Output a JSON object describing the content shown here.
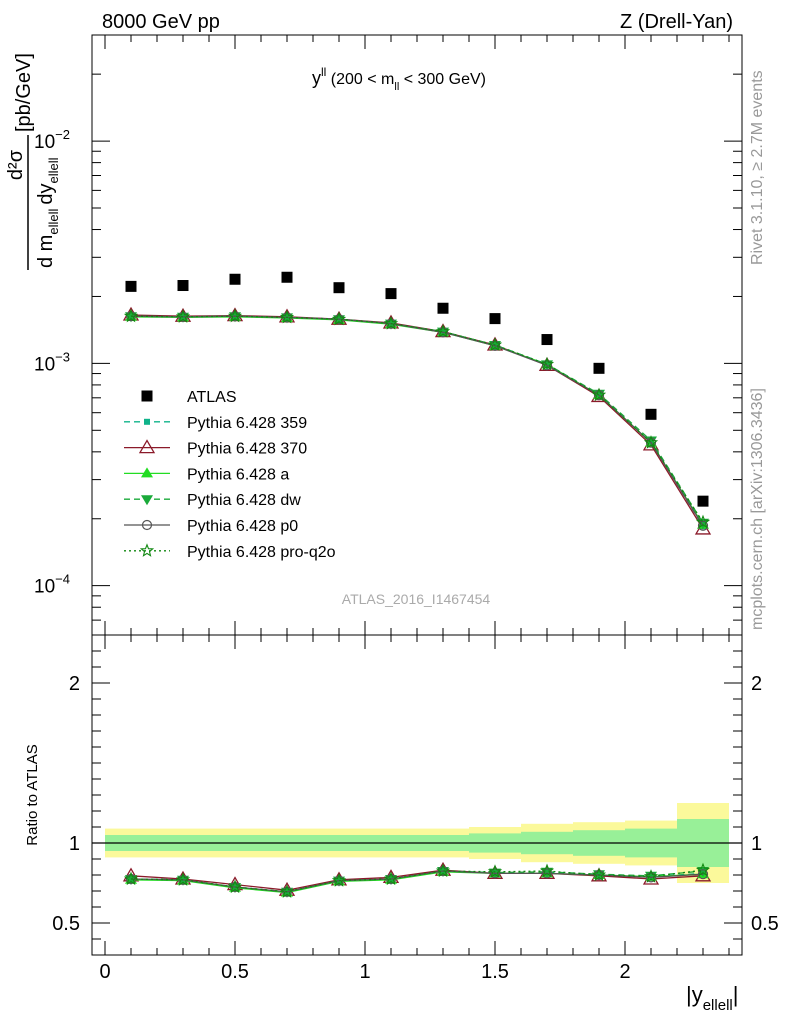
{
  "header": {
    "left": "8000 GeV pp",
    "right": "Z (Drell-Yan)"
  },
  "side_text": {
    "rivet": "Rivet 3.1.10, ≥ 2.7M events",
    "source": "mcplots.cern.ch [arXiv:1306.3436]"
  },
  "analysis_id": "ATLAS_2016_I1467454",
  "plot_title": {
    "var": "y",
    "var_sup": "ll",
    "range_pre": " (200 < m",
    "range_sub": "ll",
    "range_post": " < 300 GeV)"
  },
  "axes": {
    "ylabel_top": "[pb/GeV]",
    "ylabel_num": "d²σ",
    "ylabel_den_a": "d m",
    "ylabel_den_a_sub": "ellell",
    "ylabel_den_b": "dy",
    "ylabel_den_b_sub": "ellell",
    "ylabel_ratio": "Ratio to ATLAS",
    "xlabel": "|y",
    "xlabel_sub": "ellell",
    "xlabel_close": "|",
    "main_tick_labels": [
      {
        "base": "10",
        "exp": "−2",
        "value": 0.01
      },
      {
        "base": "10",
        "exp": "−3",
        "value": 0.001
      },
      {
        "base": "10",
        "exp": "−4",
        "value": 0.0001
      }
    ],
    "ratio_tick_labels": [
      "2",
      "1",
      "0.5"
    ],
    "x_tick_labels": [
      "0",
      "0.5",
      "1",
      "1.5",
      "2"
    ]
  },
  "legend": {
    "placement": "middle-left",
    "entries": [
      {
        "label": "ATLAS",
        "color": "#000000",
        "marker": "square",
        "dash": "none"
      },
      {
        "label": "Pythia 6.428 359",
        "color": "#0fb38a",
        "marker": "small-square",
        "dash": "dashed"
      },
      {
        "label": "Pythia 6.428 370",
        "color": "#8b1a2a",
        "marker": "open-triangle",
        "dash": "solid"
      },
      {
        "label": "Pythia 6.428 a",
        "color": "#22dd22",
        "marker": "triangle",
        "dash": "solid"
      },
      {
        "label": "Pythia 6.428 dw",
        "color": "#1aaa3a",
        "marker": "down-triangle",
        "dash": "dashed"
      },
      {
        "label": "Pythia 6.428 p0",
        "color": "#555555",
        "marker": "open-circle",
        "dash": "solid"
      },
      {
        "label": "Pythia 6.428 pro-q2o",
        "color": "#118811",
        "marker": "open-star",
        "dash": "dotted"
      }
    ]
  },
  "chart_data": {
    "type": "line",
    "title": "",
    "xlabel": "|y_ellell|",
    "ylabel": "d²σ / d m_ellell dy_ellell [pb/GeV]",
    "xlim": [
      -0.05,
      2.45
    ],
    "ylim_main": [
      6e-05,
      0.03
    ],
    "yscale_main": "log",
    "ylim_ratio": [
      0.3,
      2.3
    ],
    "grid": false,
    "x": [
      0.1,
      0.3,
      0.5,
      0.7,
      0.9,
      1.1,
      1.3,
      1.5,
      1.7,
      1.9,
      2.1,
      2.3
    ],
    "data": {
      "name": "ATLAS",
      "values": [
        0.00222,
        0.00224,
        0.00239,
        0.00244,
        0.00219,
        0.00206,
        0.00177,
        0.00159,
        0.00128,
        0.00095,
        0.00059,
        0.00024
      ],
      "bin_edges": [
        0.0,
        0.2,
        0.4,
        0.6,
        0.8,
        1.0,
        1.2,
        1.4,
        1.6,
        1.8,
        2.0,
        2.2,
        2.4
      ],
      "ratio_band_inner": [
        0.05,
        0.05,
        0.05,
        0.05,
        0.05,
        0.05,
        0.05,
        0.06,
        0.07,
        0.08,
        0.09,
        0.15
      ],
      "ratio_band_outer": [
        0.09,
        0.09,
        0.09,
        0.09,
        0.09,
        0.09,
        0.09,
        0.1,
        0.12,
        0.13,
        0.14,
        0.25
      ]
    },
    "series": [
      {
        "name": "Pythia 6.428 359",
        "values": [
          0.00163,
          0.00162,
          0.00163,
          0.00161,
          0.00158,
          0.00151,
          0.00138,
          0.00121,
          0.00099,
          0.00072,
          0.00044,
          0.000185
        ],
        "ratio": [
          0.775,
          0.77,
          0.725,
          0.695,
          0.765,
          0.775,
          0.825,
          0.815,
          0.815,
          0.8,
          0.79,
          0.81
        ]
      },
      {
        "name": "Pythia 6.428 370",
        "values": [
          0.00165,
          0.00163,
          0.00164,
          0.00162,
          0.00158,
          0.00152,
          0.00139,
          0.00121,
          0.00098,
          0.00071,
          0.00043,
          0.00018
        ],
        "ratio": [
          0.795,
          0.775,
          0.74,
          0.705,
          0.77,
          0.785,
          0.83,
          0.81,
          0.81,
          0.795,
          0.775,
          0.795
        ]
      },
      {
        "name": "Pythia 6.428 a",
        "values": [
          0.00162,
          0.00161,
          0.00162,
          0.0016,
          0.00157,
          0.0015,
          0.00138,
          0.0012,
          0.00099,
          0.00072,
          0.00044,
          0.000188
        ],
        "ratio": [
          0.77,
          0.765,
          0.72,
          0.69,
          0.76,
          0.77,
          0.82,
          0.81,
          0.81,
          0.8,
          0.79,
          0.805
        ]
      },
      {
        "name": "Pythia 6.428 dw",
        "values": [
          0.00163,
          0.00162,
          0.00163,
          0.00161,
          0.00158,
          0.00151,
          0.00139,
          0.00121,
          0.00099,
          0.00073,
          0.00045,
          0.000192
        ],
        "ratio": [
          0.775,
          0.77,
          0.725,
          0.695,
          0.765,
          0.775,
          0.825,
          0.815,
          0.82,
          0.805,
          0.795,
          0.825
        ]
      },
      {
        "name": "Pythia 6.428 p0",
        "values": [
          0.00163,
          0.00162,
          0.00163,
          0.00161,
          0.00158,
          0.00151,
          0.00138,
          0.0012,
          0.00098,
          0.00072,
          0.00044,
          0.000186
        ],
        "ratio": [
          0.775,
          0.77,
          0.725,
          0.695,
          0.765,
          0.775,
          0.825,
          0.81,
          0.81,
          0.8,
          0.785,
          0.805
        ]
      },
      {
        "name": "Pythia 6.428 pro-q2o",
        "values": [
          0.00163,
          0.00162,
          0.00163,
          0.00161,
          0.00158,
          0.00151,
          0.00139,
          0.00121,
          0.00099,
          0.00072,
          0.00044,
          0.000193
        ],
        "ratio": [
          0.775,
          0.77,
          0.725,
          0.695,
          0.765,
          0.775,
          0.825,
          0.82,
          0.825,
          0.8,
          0.79,
          0.83
        ]
      }
    ]
  }
}
